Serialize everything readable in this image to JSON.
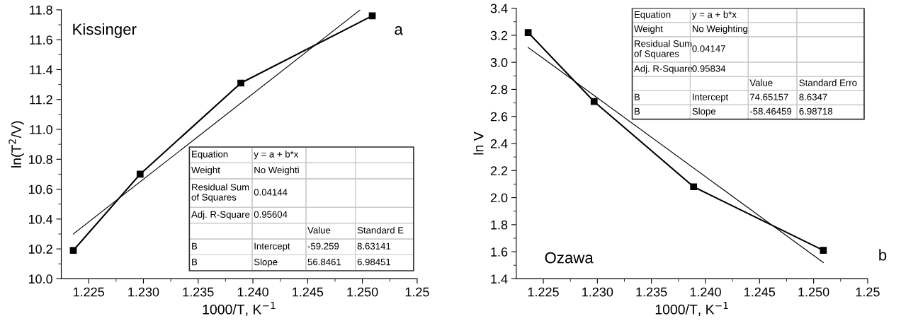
{
  "chart_data": [
    {
      "type": "line",
      "xlabel": "1000/T, K$^{−1}$",
      "ylabel": "ln(T$^{2}$/V)",
      "x": [
        1.2236,
        1.2297,
        1.2389,
        1.2509
      ],
      "series": [
        {
          "color": "#000000",
          "values": [
            10.19,
            10.7,
            11.31,
            11.76
          ],
          "marker": "square"
        },
        {
          "color": "#000000",
          "x": [
            1.2236,
            1.2498
          ],
          "values": [
            10.3,
            11.8
          ],
          "marker": "none"
        }
      ],
      "xlim": [
        1.2225,
        1.255
      ],
      "xticks": [
        1.225,
        {
          "value": 1.23,
          "label": "1.230"
        },
        1.235,
        {
          "value": 1.24,
          "label": "1.240"
        },
        1.245,
        {
          "value": 1.25,
          "label": "1.250"
        },
        {
          "value": 1.255,
          "label": "1.25"
        }
      ],
      "ylim": [
        10.0,
        11.8
      ],
      "yticks": [
        {
          "value": 10,
          "label": "10.0"
        },
        10.2,
        10.4,
        10.6,
        10.8,
        {
          "value": 11,
          "label": "11.0"
        },
        11.2,
        11.4,
        11.6,
        11.8
      ],
      "grid": false,
      "line_style": "solid",
      "annotations": [
        "Kissinger",
        "a",
        "Equation",
        "y = a + b*x",
        "Weight",
        "No Weighti",
        "Residual Sum\nof Squares",
        "0.04144",
        "Adj. R-Square",
        "0.95604",
        "Value",
        "Standard E",
        "B",
        "Intercept",
        "-59.259",
        "8.63141",
        "B",
        "Slope",
        "56.8461",
        "6.98451"
      ]
    },
    {
      "type": "line",
      "xlabel": "1000/T, K$^{−1}$",
      "ylabel": "ln V",
      "x": [
        1.2236,
        1.2297,
        1.2389,
        1.2509
      ],
      "series": [
        {
          "color": "#000000",
          "values": [
            3.22,
            2.71,
            2.08,
            1.61
          ],
          "marker": "square"
        },
        {
          "color": "#000000",
          "x": [
            1.2236,
            1.2509
          ],
          "values": [
            3.11,
            1.52
          ],
          "marker": "none"
        }
      ],
      "xlim": [
        1.2225,
        1.255
      ],
      "xticks": [
        1.225,
        {
          "value": 1.23,
          "label": "1.230"
        },
        1.235,
        {
          "value": 1.24,
          "label": "1.240"
        },
        1.245,
        {
          "value": 1.25,
          "label": "1.250"
        },
        {
          "value": 1.255,
          "label": "1.25"
        }
      ],
      "ylim": [
        1.4,
        3.4
      ],
      "yticks": [
        1.4,
        1.6,
        1.8,
        {
          "value": 2,
          "label": "2.0"
        },
        2.2,
        2.4,
        2.6,
        2.8,
        {
          "value": 3,
          "label": "3.0"
        },
        3.2,
        3.4
      ],
      "grid": false,
      "line_style": "solid",
      "annotations": [
        "Ozawa",
        "b",
        "Equation",
        "y = a + b*x",
        "Weight",
        "No Weighting",
        "Residual Sum\nof Squares",
        "0.04147",
        "Adj. R-Square",
        "0.95834",
        "Value",
        "Standard Erro",
        "B",
        "Intercept",
        "74.65157",
        "8.6347",
        "B",
        "Slope",
        "-58.46459",
        "6.98718"
      ]
    }
  ]
}
